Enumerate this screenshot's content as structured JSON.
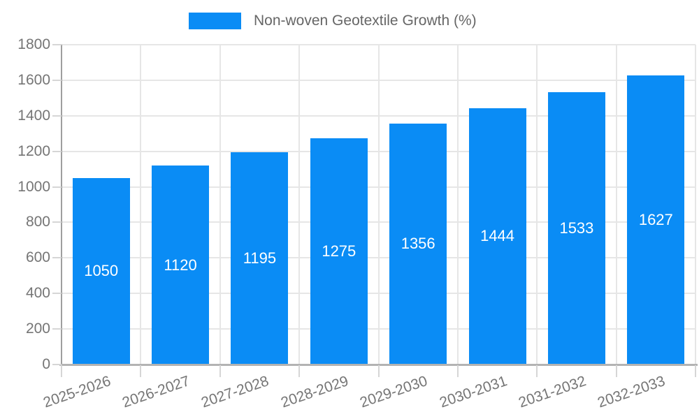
{
  "chart_data": {
    "type": "bar",
    "title": "Non-woven Geotextile Growth (%)",
    "legend": {
      "label": "Non-woven Geotextile Growth (%)",
      "position": "top"
    },
    "categories": [
      "2025-2026",
      "2026-2027",
      "2027-2028",
      "2028-2029",
      "2029-2030",
      "2030-2031",
      "2031-2032",
      "2032-2033"
    ],
    "values": [
      1050,
      1120,
      1195,
      1275,
      1356,
      1444,
      1533,
      1627
    ],
    "xlabel": "",
    "ylabel": "",
    "ylim": [
      0,
      1800
    ],
    "yticks": [
      0,
      200,
      400,
      600,
      800,
      1000,
      1200,
      1400,
      1600,
      1800
    ],
    "grid": true,
    "bar_labels_shown": true,
    "colors": {
      "bar": "#0a8cf5",
      "grid": "#e6e6e6",
      "tick": "#d6d6d6",
      "axis_y": "#9e9e9e",
      "axis_x": "#b3b3b3",
      "axis_text": "#757575",
      "legend_text": "#666666",
      "bar_label": "#ffffff",
      "background": "#ffffff"
    }
  }
}
